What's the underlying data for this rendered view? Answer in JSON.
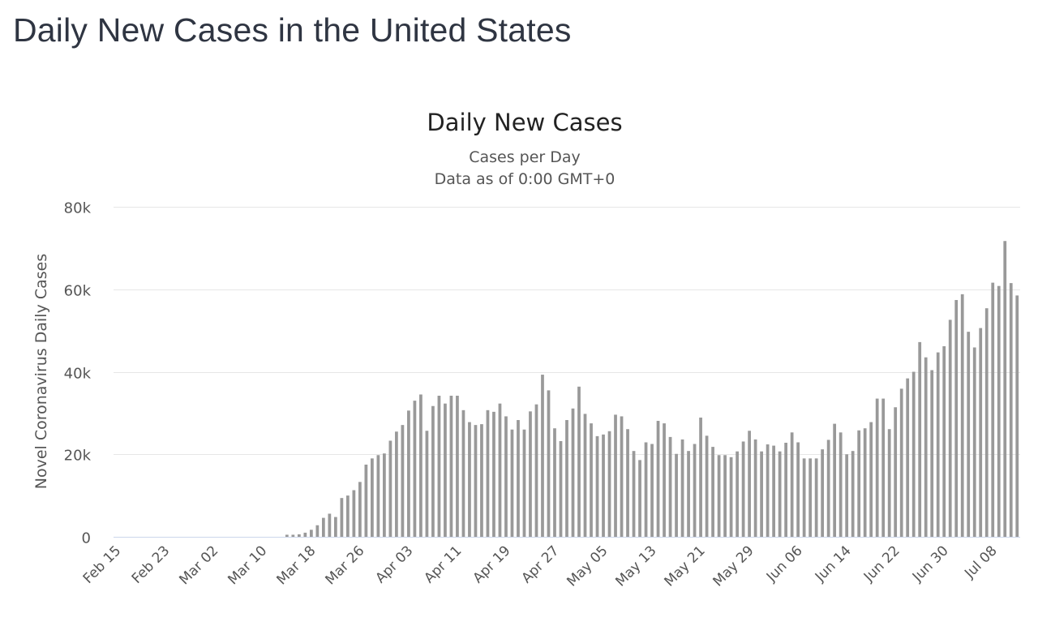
{
  "page": {
    "heading": "Daily New Cases in the United States"
  },
  "chart_data": {
    "type": "bar",
    "title": "Daily New Cases",
    "subtitle_lines": [
      "Cases per Day",
      "Data as of 0:00 GMT+0"
    ],
    "xlabel": "",
    "ylabel": "Novel Coronavirus Daily Cases",
    "ylim": [
      0,
      80000
    ],
    "y_ticks": [
      0,
      20000,
      40000,
      60000,
      80000
    ],
    "y_tick_labels": [
      "0",
      "20k",
      "40k",
      "60k",
      "80k"
    ],
    "x_tick_labels": [
      "Feb 15",
      "Feb 23",
      "Mar 02",
      "Mar 10",
      "Mar 18",
      "Mar 26",
      "Apr 03",
      "Apr 11",
      "Apr 19",
      "Apr 27",
      "May 05",
      "May 13",
      "May 21",
      "May 29",
      "Jun 06",
      "Jun 14",
      "Jun 22",
      "Jun 30",
      "Jul 08"
    ],
    "grid": true,
    "legend": "none",
    "bar_color": "#999999",
    "categories": [
      "Feb 15",
      "Feb 16",
      "Feb 17",
      "Feb 18",
      "Feb 19",
      "Feb 20",
      "Feb 21",
      "Feb 22",
      "Feb 23",
      "Feb 24",
      "Feb 25",
      "Feb 26",
      "Feb 27",
      "Feb 28",
      "Feb 29",
      "Mar 01",
      "Mar 02",
      "Mar 03",
      "Mar 04",
      "Mar 05",
      "Mar 06",
      "Mar 07",
      "Mar 08",
      "Mar 09",
      "Mar 10",
      "Mar 11",
      "Mar 12",
      "Mar 13",
      "Mar 14",
      "Mar 15",
      "Mar 16",
      "Mar 17",
      "Mar 18",
      "Mar 19",
      "Mar 20",
      "Mar 21",
      "Mar 22",
      "Mar 23",
      "Mar 24",
      "Mar 25",
      "Mar 26",
      "Mar 27",
      "Mar 28",
      "Mar 29",
      "Mar 30",
      "Mar 31",
      "Apr 01",
      "Apr 02",
      "Apr 03",
      "Apr 04",
      "Apr 05",
      "Apr 06",
      "Apr 07",
      "Apr 08",
      "Apr 09",
      "Apr 10",
      "Apr 11",
      "Apr 12",
      "Apr 13",
      "Apr 14",
      "Apr 15",
      "Apr 16",
      "Apr 17",
      "Apr 18",
      "Apr 19",
      "Apr 20",
      "Apr 21",
      "Apr 22",
      "Apr 23",
      "Apr 24",
      "Apr 25",
      "Apr 26",
      "Apr 27",
      "Apr 28",
      "Apr 29",
      "Apr 30",
      "May 01",
      "May 02",
      "May 03",
      "May 04",
      "May 05",
      "May 06",
      "May 07",
      "May 08",
      "May 09",
      "May 10",
      "May 11",
      "May 12",
      "May 13",
      "May 14",
      "May 15",
      "May 16",
      "May 17",
      "May 18",
      "May 19",
      "May 20",
      "May 21",
      "May 22",
      "May 23",
      "May 24",
      "May 25",
      "May 26",
      "May 27",
      "May 28",
      "May 29",
      "May 30",
      "May 31",
      "Jun 01",
      "Jun 02",
      "Jun 03",
      "Jun 04",
      "Jun 05",
      "Jun 06",
      "Jun 07",
      "Jun 08",
      "Jun 09",
      "Jun 10",
      "Jun 11",
      "Jun 12",
      "Jun 13",
      "Jun 14",
      "Jun 15",
      "Jun 16",
      "Jun 17",
      "Jun 18",
      "Jun 19",
      "Jun 20",
      "Jun 21",
      "Jun 22",
      "Jun 23",
      "Jun 24",
      "Jun 25",
      "Jun 26",
      "Jun 27",
      "Jun 28",
      "Jun 29",
      "Jun 30",
      "Jul 01",
      "Jul 02",
      "Jul 03",
      "Jul 04",
      "Jul 05",
      "Jul 06",
      "Jul 07",
      "Jul 08",
      "Jul 09",
      "Jul 10",
      "Jul 11",
      "Jul 12"
    ],
    "values": [
      0,
      0,
      0,
      0,
      0,
      0,
      0,
      0,
      0,
      0,
      0,
      0,
      0,
      0,
      0,
      0,
      0,
      0,
      0,
      0,
      0,
      0,
      0,
      0,
      0,
      0,
      0,
      0,
      500,
      500,
      600,
      1000,
      1700,
      2800,
      4600,
      5600,
      4800,
      9400,
      10000,
      11300,
      13300,
      17500,
      19000,
      19800,
      20200,
      23300,
      25500,
      27100,
      30600,
      33000,
      34500,
      25700,
      31700,
      34200,
      32300,
      34200,
      34200,
      30700,
      27800,
      27100,
      27300,
      30700,
      30300,
      32300,
      29200,
      26000,
      28300,
      26000,
      30400,
      32100,
      39300,
      35500,
      26300,
      23200,
      28300,
      31100,
      36400,
      29800,
      27500,
      24400,
      24800,
      25600,
      29600,
      29200,
      26100,
      20800,
      18600,
      22900,
      22500,
      28100,
      27500,
      24200,
      20100,
      23600,
      20800,
      22500,
      28900,
      24500,
      21800,
      19800,
      19800,
      19300,
      20700,
      23100,
      25700,
      23600,
      20700,
      22400,
      22100,
      20700,
      22800,
      25300,
      22900,
      19000,
      19000,
      19000,
      21200,
      23500,
      27400,
      25300,
      20000,
      20800,
      25800,
      26300,
      27800,
      33500,
      33500,
      26100,
      31400,
      35900,
      38400,
      40000,
      47200,
      43500,
      40400,
      44700,
      46200,
      52600,
      57400,
      58800,
      49700,
      45900,
      50600,
      55400,
      61600,
      60800,
      71700,
      61500,
      58500
    ]
  }
}
